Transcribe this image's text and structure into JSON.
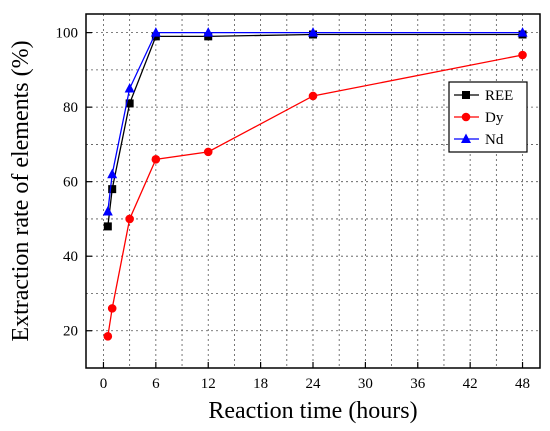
{
  "chart_data": {
    "type": "line",
    "xlabel": "Reaction time (hours)",
    "ylabel": "Extraction rate of elements (%)",
    "xlim": [
      -2,
      50
    ],
    "ylim": [
      10,
      105
    ],
    "xticks": [
      0,
      6,
      12,
      18,
      24,
      30,
      36,
      42,
      48
    ],
    "yticks": [
      20,
      40,
      60,
      80,
      100
    ],
    "grid": true,
    "legend_position": "right",
    "series": [
      {
        "name": "REE",
        "color": "#000000",
        "marker": "square",
        "x": [
          0.5,
          1,
          3,
          6,
          12,
          24,
          48
        ],
        "y": [
          48,
          58,
          81,
          99,
          99,
          99.5,
          99.5
        ]
      },
      {
        "name": "Dy",
        "color": "#ff0000",
        "marker": "circle",
        "x": [
          0.5,
          1,
          3,
          6,
          12,
          24,
          48
        ],
        "y": [
          18.5,
          26,
          50,
          66,
          68,
          83,
          94
        ]
      },
      {
        "name": "Nd",
        "color": "#0000ff",
        "marker": "triangle",
        "x": [
          0.5,
          1,
          3,
          6,
          12,
          24,
          48
        ],
        "y": [
          52,
          62,
          85,
          100,
          100,
          100,
          100
        ]
      }
    ]
  }
}
